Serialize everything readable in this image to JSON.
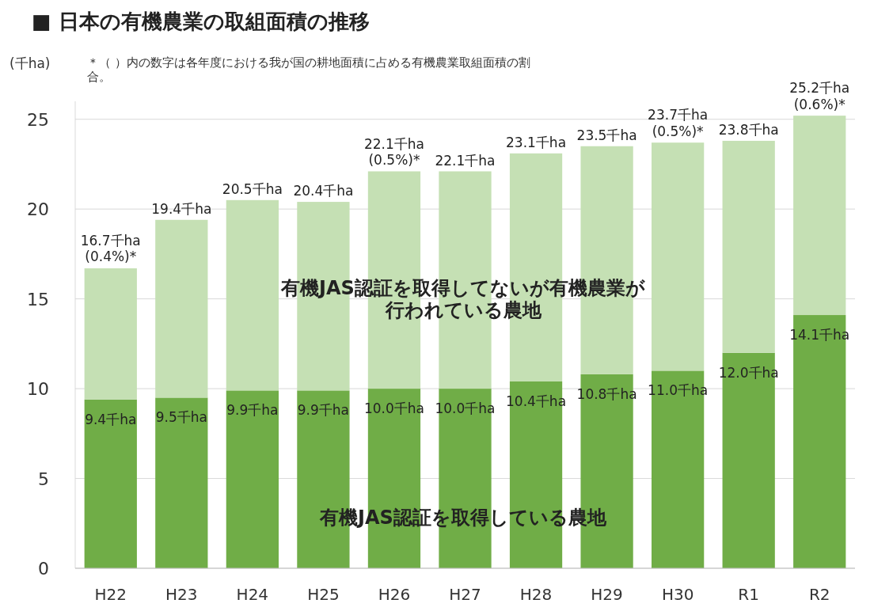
{
  "chart_data": {
    "type": "bar",
    "stacked": true,
    "title": "■ 日本の有機農業の取組面積の推移",
    "ylabel": "(千ha)",
    "annotations": [
      "＊（ ）内の数字は各年度における我が国の耕地面積に占める有機農業取組面積の割合。"
    ],
    "categories": [
      "H22",
      "H23",
      "H24",
      "H25",
      "H26",
      "H27",
      "H28",
      "H29",
      "H30",
      "R1",
      "R2"
    ],
    "series": [
      {
        "name": "有機JAS認証を取得している農地",
        "color": "#70ad47",
        "values": [
          9.4,
          9.5,
          9.9,
          9.9,
          10.0,
          10.0,
          10.4,
          10.8,
          11.0,
          12.0,
          14.1
        ],
        "value_labels": [
          "9.4千ha",
          "9.5千ha",
          "9.9千ha",
          "9.9千ha",
          "10.0千ha",
          "10.0千ha",
          "10.4千ha",
          "10.8千ha",
          "11.0千ha",
          "12.0千ha",
          "14.1千ha"
        ]
      },
      {
        "name": "有機JAS認証を取得してないが有機農業が行われている農地",
        "color": "#c5e0b4",
        "values": [
          7.3,
          9.9,
          10.6,
          10.5,
          12.1,
          12.1,
          12.7,
          12.7,
          12.7,
          11.8,
          11.1
        ]
      }
    ],
    "totals": [
      "16.7千ha\n(0.4%)*",
      "19.4千ha",
      "20.5千ha",
      "20.4千ha",
      "22.1千ha\n(0.5%)*",
      "22.1千ha",
      "23.1千ha",
      "23.5千ha",
      "23.7千ha\n(0.5%)*",
      "23.8千ha",
      "25.2千ha\n(0.6%)*"
    ],
    "ylim": [
      0,
      26
    ],
    "yticks": [
      0,
      5,
      10,
      15,
      20,
      25
    ],
    "grid": "y"
  }
}
